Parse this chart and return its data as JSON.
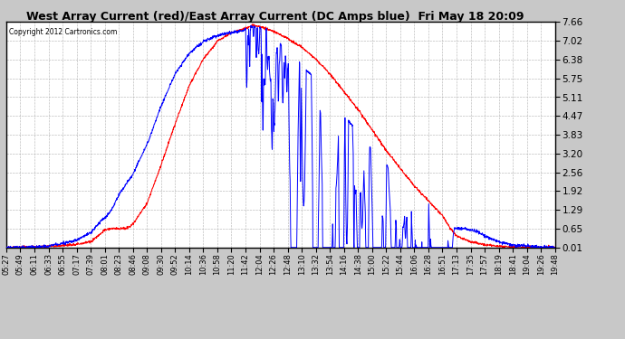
{
  "title": "West Array Current (red)/East Array Current (DC Amps blue)  Fri May 18 20:09",
  "copyright": "Copyright 2012 Cartronics.com",
  "yticks": [
    0.01,
    0.65,
    1.29,
    1.92,
    2.56,
    3.2,
    3.83,
    4.47,
    5.11,
    5.75,
    6.38,
    7.02,
    7.66
  ],
  "ymin": 0.01,
  "ymax": 7.66,
  "xtick_labels": [
    "05:27",
    "05:49",
    "06:11",
    "06:33",
    "06:55",
    "07:17",
    "07:39",
    "08:01",
    "08:23",
    "08:46",
    "09:08",
    "09:30",
    "09:52",
    "10:14",
    "10:36",
    "10:58",
    "11:20",
    "11:42",
    "12:04",
    "12:26",
    "12:48",
    "13:10",
    "13:32",
    "13:54",
    "14:16",
    "14:38",
    "15:00",
    "15:22",
    "15:44",
    "16:06",
    "16:28",
    "16:51",
    "17:13",
    "17:35",
    "17:57",
    "18:19",
    "18:41",
    "19:04",
    "19:26",
    "19:48"
  ],
  "red_color": "#ff0000",
  "blue_color": "#0000ff",
  "bg_color": "#ffffff",
  "grid_color": "#b0b0b0",
  "title_bg": "#c8c8c8",
  "n_points": 2000
}
